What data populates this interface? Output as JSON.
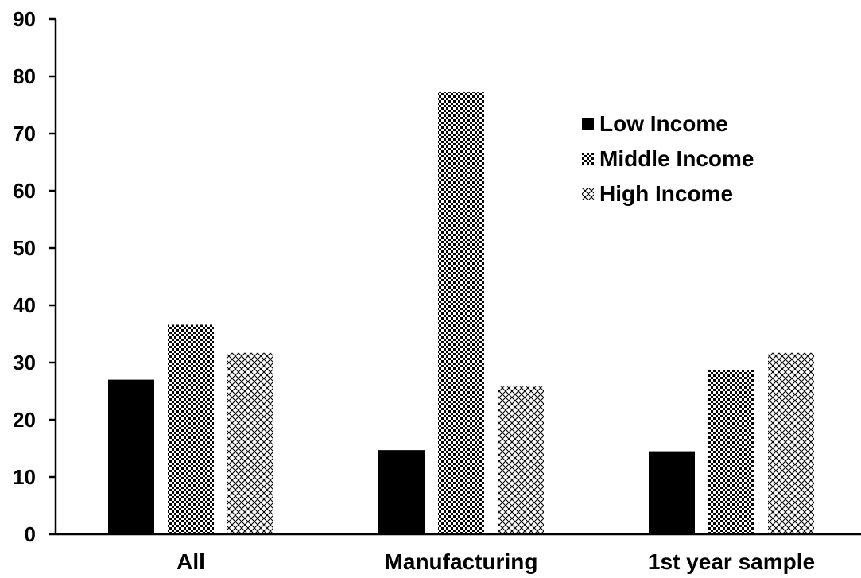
{
  "chart_data": {
    "type": "bar",
    "title": "",
    "xlabel": "",
    "ylabel": "",
    "categories": [
      "All",
      "Manufacturing",
      "1st year sample"
    ],
    "series": [
      {
        "name": "Low Income",
        "values": [
          27,
          14.7,
          14.5
        ],
        "pattern": "solid"
      },
      {
        "name": "Middle Income",
        "values": [
          36.6,
          77.2,
          28.7
        ],
        "pattern": "checker"
      },
      {
        "name": "High Income",
        "values": [
          31.7,
          25.8,
          31.7
        ],
        "pattern": "crosshatch"
      }
    ],
    "ylim": [
      0,
      90
    ],
    "yticks": [
      0,
      10,
      20,
      30,
      40,
      50,
      60,
      70,
      80,
      90
    ],
    "grid": false,
    "legend_position": "top-right",
    "colors": {
      "bar": "#000000",
      "background": "#ffffff"
    }
  }
}
